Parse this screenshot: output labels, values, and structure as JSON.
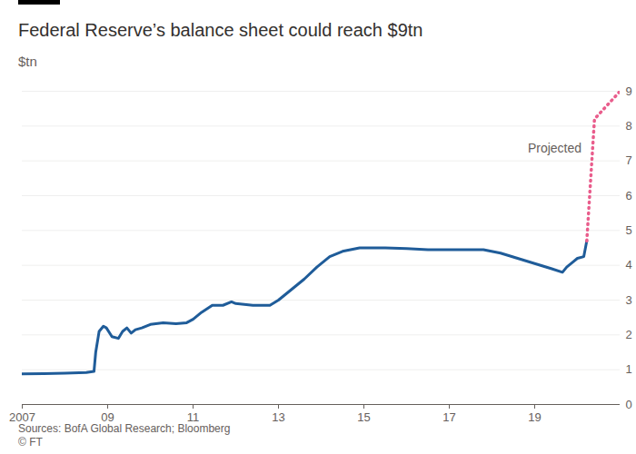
{
  "chart_data": {
    "type": "line",
    "title": "Federal Reserve’s balance sheet could reach $9tn",
    "subtitle": "$tn",
    "source": "Sources: BofA Global Research; Bloomberg",
    "credit": "© FT",
    "x": [
      2007.0,
      2007.5,
      2008.0,
      2008.5,
      2008.68,
      2008.72,
      2008.8,
      2008.9,
      2008.97,
      2009.1,
      2009.25,
      2009.35,
      2009.45,
      2009.55,
      2009.65,
      2009.8,
      2010.0,
      2010.3,
      2010.6,
      2010.85,
      2011.0,
      2011.2,
      2011.45,
      2011.7,
      2011.9,
      2012.0,
      2012.4,
      2012.8,
      2013.0,
      2013.3,
      2013.6,
      2013.9,
      2014.2,
      2014.5,
      2014.9,
      2015.5,
      2016.0,
      2016.5,
      2017.0,
      2017.5,
      2017.8,
      2018.2,
      2018.6,
      2019.0,
      2019.4,
      2019.65,
      2019.75,
      2019.9,
      2020.0,
      2020.15,
      2020.22,
      2020.4,
      2021.0
    ],
    "series": [
      {
        "color": "#1f5c99",
        "line_style": "solid",
        "values": [
          0.88,
          0.89,
          0.9,
          0.92,
          0.95,
          1.5,
          2.1,
          2.25,
          2.2,
          1.95,
          1.9,
          2.1,
          2.2,
          2.05,
          2.15,
          2.2,
          2.3,
          2.35,
          2.32,
          2.35,
          2.45,
          2.65,
          2.85,
          2.85,
          2.95,
          2.9,
          2.85,
          2.85,
          3.0,
          3.3,
          3.6,
          3.95,
          4.25,
          4.4,
          4.5,
          4.5,
          4.48,
          4.45,
          4.45,
          4.45,
          4.45,
          4.35,
          4.2,
          4.05,
          3.9,
          3.8,
          3.95,
          4.1,
          4.2,
          4.25,
          4.7,
          null,
          null
        ]
      },
      {
        "name": "Projected",
        "color": "#e95d8c",
        "line_style": "dotted",
        "values": [
          null,
          null,
          null,
          null,
          null,
          null,
          null,
          null,
          null,
          null,
          null,
          null,
          null,
          null,
          null,
          null,
          null,
          null,
          null,
          null,
          null,
          null,
          null,
          null,
          null,
          null,
          null,
          null,
          null,
          null,
          null,
          null,
          null,
          null,
          null,
          null,
          null,
          null,
          null,
          null,
          null,
          null,
          null,
          null,
          null,
          null,
          null,
          null,
          null,
          null,
          4.7,
          8.2,
          9.0
        ]
      }
    ],
    "xlim": [
      2007,
      2021
    ],
    "xticks": [
      2007,
      {
        "value": 2009,
        "label": "09"
      },
      {
        "value": 2011,
        "label": "11"
      },
      {
        "value": 2013,
        "label": "13"
      },
      {
        "value": 2015,
        "label": "15"
      },
      {
        "value": 2017,
        "label": "17"
      },
      {
        "value": 2019,
        "label": "19"
      }
    ],
    "ylim": [
      0,
      9
    ],
    "yticks": [
      0,
      1,
      2,
      3,
      4,
      5,
      6,
      7,
      8,
      9
    ],
    "grid": true
  }
}
